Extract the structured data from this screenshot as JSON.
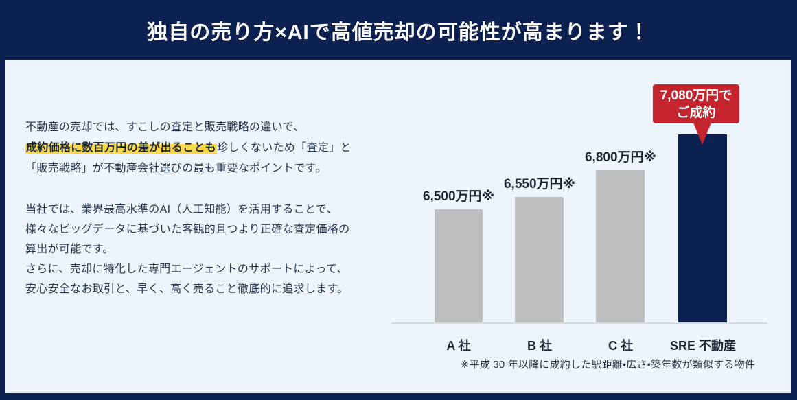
{
  "banner": {
    "title": "独自の売り方×AIで高値売却の可能性が高まります！"
  },
  "intro": {
    "p1_line1": "不動産の売却では、すこしの査定と販売戦略の違いで、",
    "p1_highlight": "成約価格に数百万円の差が出ることも",
    "p1_line2_rest": "珍しくないため「査定」と",
    "p1_line3": "「販売戦略」が不動産会社選びの最も重要なポイントです。",
    "p2_line1": "当社では、業界最高水準のAI（人工知能）を活用することで、",
    "p2_line2": "様々なビッグデータに基づいた客観的且つより正確な査定価格の",
    "p2_line3": "算出が可能です。",
    "p2_line4": "さらに、売却に特化した専門エージェントのサポートによって、",
    "p2_line5": "安心安全なお取引と、早く、高く売ること徹底的に追求します。"
  },
  "chart_data": {
    "type": "bar",
    "categories": [
      "A 社",
      "B 社",
      "C 社",
      "SRE 不動産"
    ],
    "values": [
      6500,
      6550,
      6800,
      7080
    ],
    "unit": "万円",
    "value_labels": [
      "6,500万円※",
      "6,550万円※",
      "6,800万円※"
    ],
    "callout": {
      "line1": "7,080万円で",
      "line2": "ご成約"
    },
    "footnote": "※平成 30 年以降に成約した駅距離・広さ・築年数が類似する物件",
    "legend_position": "none",
    "grid": false,
    "colors": {
      "bar_default": "#bfbfbf",
      "bar_highlight": "#0c2150",
      "callout_bg": "#c3242e",
      "banner_bg": "#0c2150",
      "panel_bg": "#edf4fb",
      "highlight_marker": "#f9d849"
    }
  }
}
